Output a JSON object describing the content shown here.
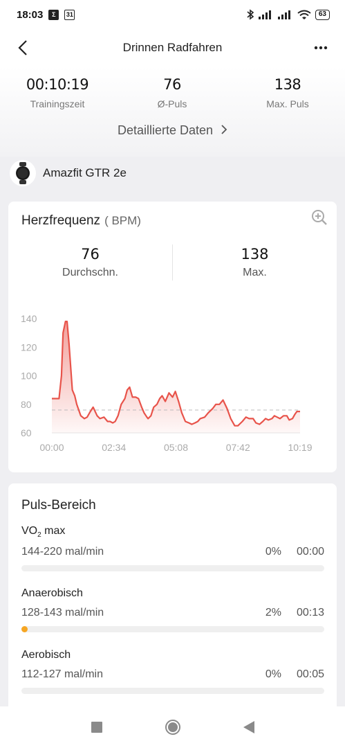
{
  "status_bar": {
    "time": "18:03",
    "calendar_day": "31",
    "battery": "63"
  },
  "nav": {
    "title": "Drinnen Radfahren"
  },
  "summary": {
    "stats": [
      {
        "value": "00:10:19",
        "label": "Trainingszeit"
      },
      {
        "value": "76",
        "label": "Ø-Puls"
      },
      {
        "value": "138",
        "label": "Max. Puls"
      }
    ],
    "details_link": "Detaillierte Daten"
  },
  "device": {
    "name": "Amazfit GTR 2e"
  },
  "heart_rate": {
    "title": "Herzfrequenz",
    "unit": "( BPM)",
    "avg_value": "76",
    "avg_label": "Durchschn.",
    "max_value": "138",
    "max_label": "Max."
  },
  "chart_data": {
    "type": "area",
    "title": "",
    "xlabel": "",
    "ylabel": "",
    "yticks": [
      "140",
      "120",
      "100",
      "80",
      "60"
    ],
    "xticks": [
      "00:00",
      "02:34",
      "05:08",
      "07:42",
      "10:19"
    ],
    "ylim": [
      60,
      140
    ],
    "xlim": [
      0,
      619
    ],
    "average_line": 76,
    "color": "#e8534a",
    "x": [
      0,
      18,
      24,
      28,
      34,
      38,
      43,
      51,
      57,
      62,
      67,
      72,
      81,
      88,
      96,
      103,
      113,
      120,
      130,
      139,
      145,
      152,
      158,
      165,
      173,
      182,
      188,
      194,
      201,
      209,
      216,
      224,
      230,
      237,
      240,
      247,
      254,
      262,
      269,
      275,
      283,
      292,
      301,
      308,
      316,
      324,
      333,
      342,
      349,
      357,
      364,
      370,
      381,
      390,
      401,
      409,
      418,
      427,
      437,
      446,
      456,
      464,
      475,
      484,
      492,
      502,
      509,
      518,
      526,
      533,
      540,
      549,
      555,
      562,
      569,
      578,
      586,
      592,
      600,
      606,
      611,
      619
    ],
    "y": [
      84,
      84,
      100,
      130,
      138,
      138,
      122,
      90,
      86,
      80,
      76,
      72,
      70,
      71,
      75,
      78,
      72,
      70,
      71,
      68,
      68,
      67,
      68,
      72,
      80,
      84,
      90,
      92,
      85,
      85,
      84,
      78,
      74,
      71,
      70,
      72,
      78,
      80,
      84,
      86,
      82,
      88,
      85,
      89,
      82,
      74,
      68,
      67,
      66,
      67,
      68,
      70,
      71,
      74,
      77,
      80,
      80,
      83,
      77,
      70,
      65,
      65,
      68,
      71,
      70,
      70,
      67,
      66,
      68,
      70,
      69,
      70,
      72,
      71,
      70,
      72,
      72,
      69,
      70,
      73,
      75,
      75
    ]
  },
  "zones": {
    "title": "Puls-Bereich",
    "items": [
      {
        "name_main": "VO",
        "name_sub": "2",
        "name_rest": " max",
        "range": "144-220 mal/min",
        "percent": "0%",
        "time": "00:00",
        "fill": 0
      },
      {
        "name": "Anaerobisch",
        "range": "128-143 mal/min",
        "percent": "2%",
        "time": "00:13",
        "fill": 0.02
      },
      {
        "name": "Aerobisch",
        "range": "112-127 mal/min",
        "percent": "0%",
        "time": "00:05",
        "fill": 0
      }
    ]
  }
}
